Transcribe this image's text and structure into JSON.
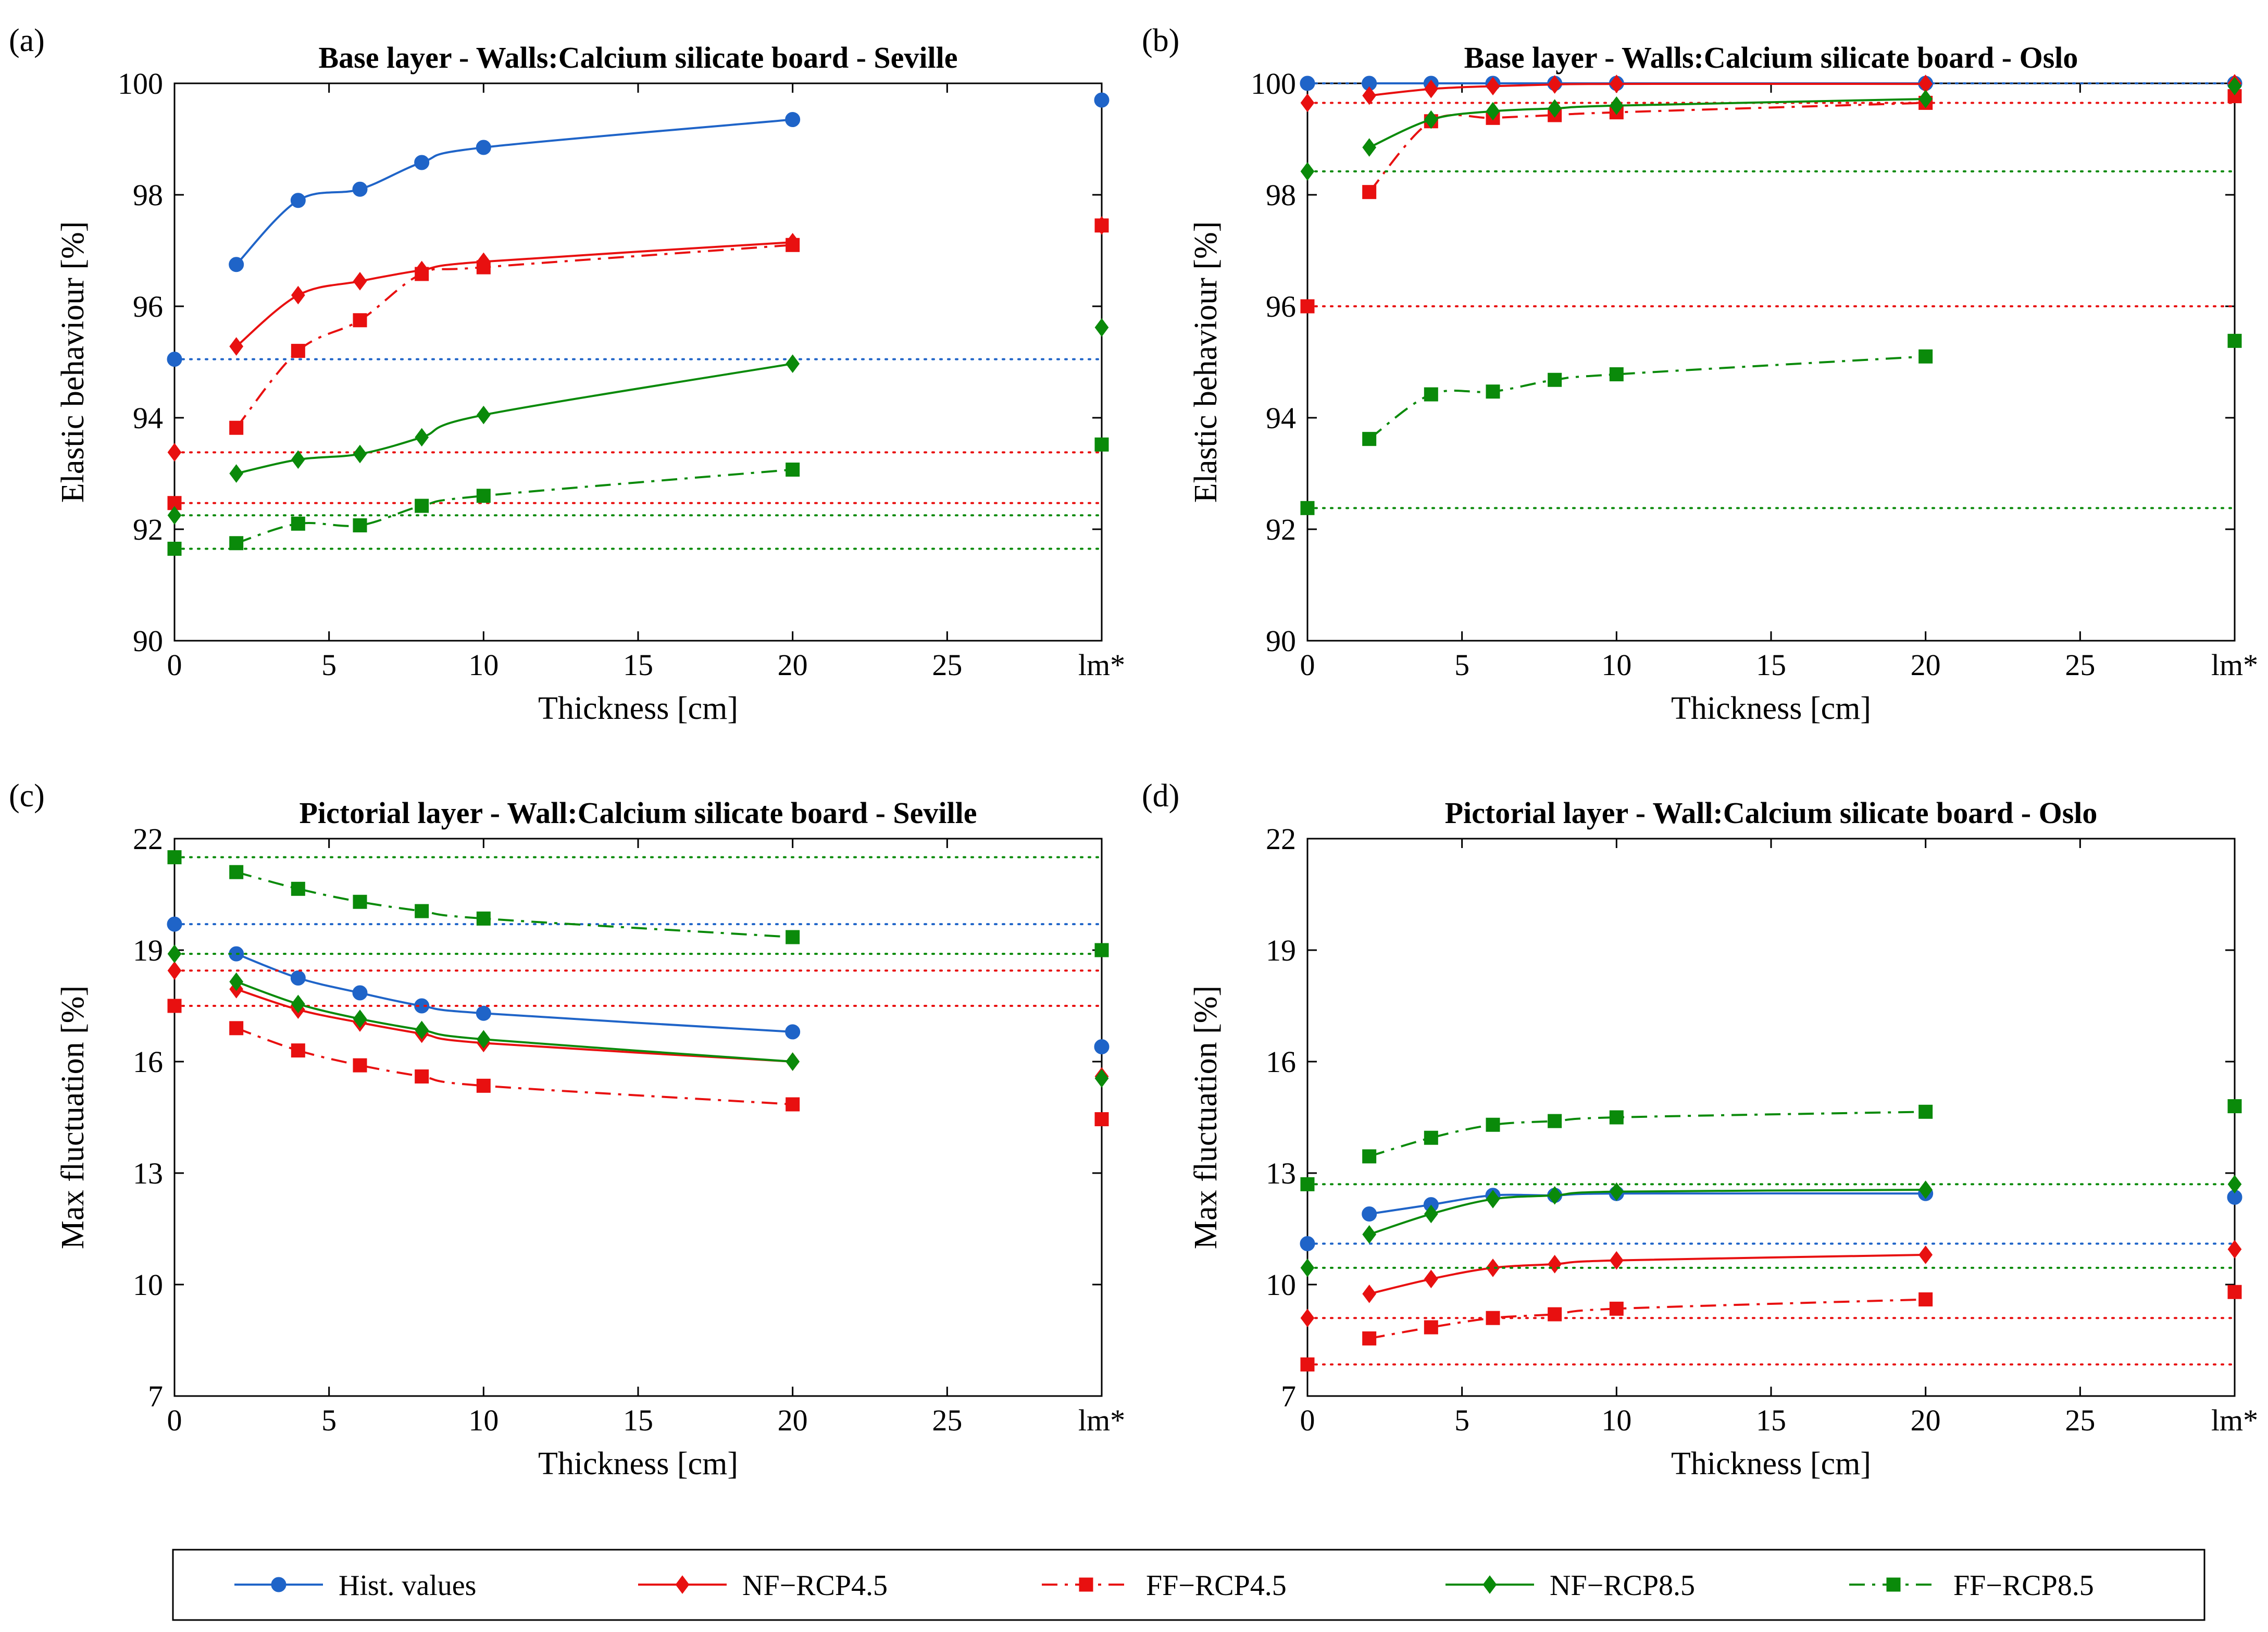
{
  "legend": [
    {
      "name": "Hist. values",
      "color": "#1f64c8",
      "dash": "solid",
      "marker": "circle"
    },
    {
      "name": "NF−RCP4.5",
      "color": "#e81010",
      "dash": "solid",
      "marker": "diamond"
    },
    {
      "name": "FF−RCP4.5",
      "color": "#e81010",
      "dash": "dashdot",
      "marker": "square"
    },
    {
      "name": "NF−RCP8.5",
      "color": "#0a8a0a",
      "dash": "solid",
      "marker": "diamond"
    },
    {
      "name": "FF−RCP8.5",
      "color": "#0a8a0a",
      "dash": "dashdot",
      "marker": "square"
    }
  ],
  "chart_data": [
    {
      "type": "line",
      "panel": "(a)",
      "title": "Base layer - Walls:Calcium silicate board - Seville",
      "xlabel": "Thickness [cm]",
      "ylabel": "Elastic behaviour [%]",
      "xlim": [
        0,
        30
      ],
      "ylim": [
        90,
        100
      ],
      "xticks": [
        0,
        5,
        10,
        15,
        20,
        25,
        30
      ],
      "xtick_labels": [
        "0",
        "5",
        "10",
        "15",
        "20",
        "25",
        "lm*"
      ],
      "yticks": [
        90,
        92,
        94,
        96,
        98,
        100
      ],
      "x": [
        2,
        4,
        6,
        8,
        10,
        20
      ],
      "series": [
        {
          "name": "Hist. values",
          "values": [
            96.75,
            97.9,
            98.1,
            98.58,
            98.85,
            99.35
          ],
          "baseline": 95.05,
          "lm": 99.7
        },
        {
          "name": "NF−RCP4.5",
          "values": [
            95.28,
            96.2,
            96.45,
            96.65,
            96.8,
            97.15
          ],
          "baseline": 93.38,
          "lm": 97.45
        },
        {
          "name": "FF−RCP4.5",
          "values": [
            93.82,
            95.2,
            95.75,
            96.58,
            96.7,
            97.1
          ],
          "baseline": 92.47,
          "lm": 97.45
        },
        {
          "name": "NF−RCP8.5",
          "values": [
            93.0,
            93.25,
            93.35,
            93.65,
            94.05,
            94.97
          ],
          "baseline": 92.25,
          "lm": 95.62
        },
        {
          "name": "FF−RCP8.5",
          "values": [
            91.75,
            92.1,
            92.07,
            92.42,
            92.6,
            93.07
          ],
          "baseline": 91.65,
          "lm": 93.52
        }
      ]
    },
    {
      "type": "line",
      "panel": "(b)",
      "title": "Base layer - Walls:Calcium silicate board - Oslo",
      "xlabel": "Thickness [cm]",
      "ylabel": "Elastic behaviour [%]",
      "xlim": [
        0,
        30
      ],
      "ylim": [
        90,
        100
      ],
      "xticks": [
        0,
        5,
        10,
        15,
        20,
        25,
        30
      ],
      "xtick_labels": [
        "0",
        "5",
        "10",
        "15",
        "20",
        "25",
        "lm*"
      ],
      "yticks": [
        90,
        92,
        94,
        96,
        98,
        100
      ],
      "x": [
        2,
        4,
        6,
        8,
        10,
        20
      ],
      "series": [
        {
          "name": "Hist. values",
          "values": [
            100.0,
            100.0,
            100.0,
            100.0,
            100.0,
            100.0
          ],
          "baseline": 100.0,
          "lm": 100.0
        },
        {
          "name": "NF−RCP4.5",
          "values": [
            99.78,
            99.9,
            99.95,
            99.98,
            99.99,
            99.99
          ],
          "baseline": 99.65,
          "lm": 100.0
        },
        {
          "name": "FF−RCP4.5",
          "values": [
            98.05,
            99.32,
            99.38,
            99.43,
            99.48,
            99.65
          ],
          "baseline": 96.0,
          "lm": 99.77
        },
        {
          "name": "NF−RCP8.5",
          "values": [
            98.85,
            99.35,
            99.5,
            99.55,
            99.6,
            99.72
          ],
          "baseline": 98.42,
          "lm": 99.95
        },
        {
          "name": "FF−RCP8.5",
          "values": [
            93.62,
            94.42,
            94.47,
            94.68,
            94.78,
            95.1
          ],
          "baseline": 92.38,
          "lm": 95.38
        }
      ]
    },
    {
      "type": "line",
      "panel": "(c)",
      "title": "Pictorial layer - Wall:Calcium silicate board - Seville",
      "xlabel": "Thickness [cm]",
      "ylabel": "Max fluctuation [%]",
      "xlim": [
        0,
        30
      ],
      "ylim": [
        7,
        22
      ],
      "xticks": [
        0,
        5,
        10,
        15,
        20,
        25,
        30
      ],
      "xtick_labels": [
        "0",
        "5",
        "10",
        "15",
        "20",
        "25",
        "lm*"
      ],
      "yticks": [
        7,
        10,
        13,
        16,
        19,
        22
      ],
      "x": [
        2,
        4,
        6,
        8,
        10,
        20
      ],
      "series": [
        {
          "name": "Hist. values",
          "values": [
            18.9,
            18.25,
            17.85,
            17.5,
            17.3,
            16.8
          ],
          "baseline": 19.7,
          "lm": 16.4
        },
        {
          "name": "NF−RCP4.5",
          "values": [
            17.95,
            17.4,
            17.05,
            16.75,
            16.5,
            16.0
          ],
          "baseline": 18.45,
          "lm": 15.6
        },
        {
          "name": "FF−RCP4.5",
          "values": [
            16.9,
            16.3,
            15.9,
            15.6,
            15.35,
            14.85
          ],
          "baseline": 17.5,
          "lm": 14.45
        },
        {
          "name": "NF−RCP8.5",
          "values": [
            18.15,
            17.55,
            17.15,
            16.85,
            16.6,
            16.0
          ],
          "baseline": 18.9,
          "lm": 15.55
        },
        {
          "name": "FF−RCP8.5",
          "values": [
            21.1,
            20.65,
            20.3,
            20.05,
            19.85,
            19.35
          ],
          "baseline": 21.5,
          "lm": 19.0
        }
      ]
    },
    {
      "type": "line",
      "panel": "(d)",
      "title": "Pictorial layer - Wall:Calcium silicate board - Oslo",
      "xlabel": "Thickness [cm]",
      "ylabel": "Max fluctuation [%]",
      "xlim": [
        0,
        30
      ],
      "ylim": [
        7,
        22
      ],
      "xticks": [
        0,
        5,
        10,
        15,
        20,
        25,
        30
      ],
      "xtick_labels": [
        "0",
        "5",
        "10",
        "15",
        "20",
        "25",
        "lm*"
      ],
      "yticks": [
        7,
        10,
        13,
        16,
        19,
        22
      ],
      "x": [
        2,
        4,
        6,
        8,
        10,
        20
      ],
      "series": [
        {
          "name": "Hist. values",
          "values": [
            11.9,
            12.15,
            12.4,
            12.4,
            12.45,
            12.45
          ],
          "baseline": 11.1,
          "lm": 12.35
        },
        {
          "name": "NF−RCP4.5",
          "values": [
            9.75,
            10.15,
            10.45,
            10.55,
            10.65,
            10.8
          ],
          "baseline": 9.1,
          "lm": 10.95
        },
        {
          "name": "FF−RCP4.5",
          "values": [
            8.55,
            8.85,
            9.1,
            9.2,
            9.35,
            9.6
          ],
          "baseline": 7.85,
          "lm": 9.8
        },
        {
          "name": "NF−RCP8.5",
          "values": [
            11.35,
            11.9,
            12.3,
            12.4,
            12.5,
            12.55
          ],
          "baseline": 10.45,
          "lm": 12.7
        },
        {
          "name": "FF−RCP8.5",
          "values": [
            13.45,
            13.95,
            14.3,
            14.4,
            14.5,
            14.65
          ],
          "baseline": 12.7,
          "lm": 14.8
        }
      ]
    }
  ]
}
